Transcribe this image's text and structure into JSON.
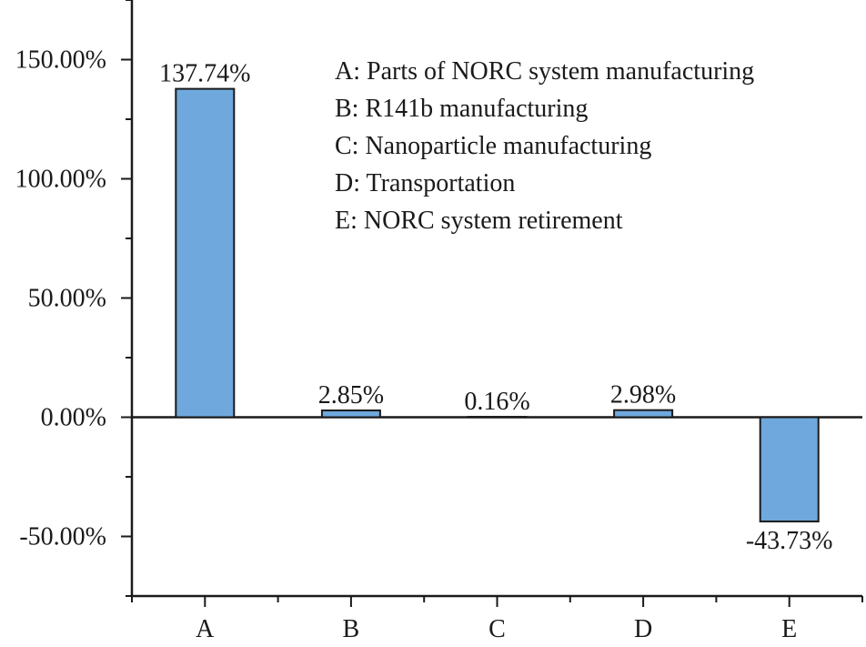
{
  "chart_data": {
    "type": "bar",
    "categories": [
      "A",
      "B",
      "C",
      "D",
      "E"
    ],
    "values": [
      137.74,
      2.85,
      0.16,
      2.98,
      -43.73
    ],
    "data_labels": [
      "137.74%",
      "2.85%",
      "0.16%",
      "2.98%",
      "-43.73%"
    ],
    "ylim": [
      -75,
      175
    ],
    "yticks": [
      -50,
      0,
      50,
      100,
      150
    ],
    "ytick_labels": [
      "-50.00%",
      "0.00%",
      "50.00%",
      "100.00%",
      "150.00%"
    ],
    "title": "",
    "xlabel": "",
    "ylabel": "",
    "grid": false,
    "bar_color": "#6fa8dc",
    "legend": {
      "placement": "top-right",
      "entries": [
        "A: Parts of NORC system manufacturing",
        "B: R141b manufacturing",
        "C: Nanoparticle manufacturing",
        "D: Transportation",
        "E: NORC system retirement"
      ]
    }
  }
}
